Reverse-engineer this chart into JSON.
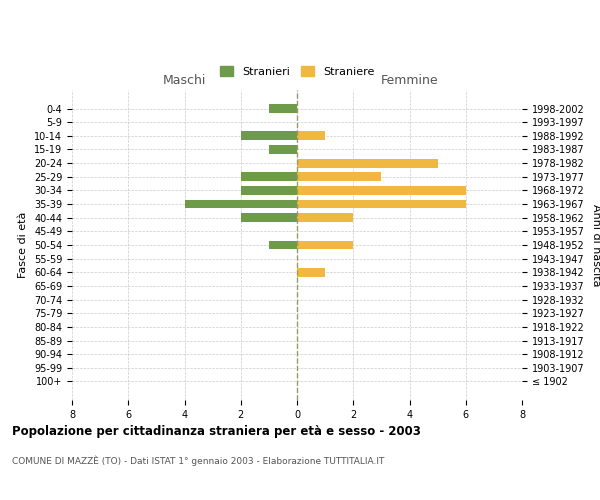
{
  "age_groups": [
    "100+",
    "95-99",
    "90-94",
    "85-89",
    "80-84",
    "75-79",
    "70-74",
    "65-69",
    "60-64",
    "55-59",
    "50-54",
    "45-49",
    "40-44",
    "35-39",
    "30-34",
    "25-29",
    "20-24",
    "15-19",
    "10-14",
    "5-9",
    "0-4"
  ],
  "birth_years": [
    "≤ 1902",
    "1903-1907",
    "1908-1912",
    "1913-1917",
    "1918-1922",
    "1923-1927",
    "1928-1932",
    "1933-1937",
    "1938-1942",
    "1943-1947",
    "1948-1952",
    "1953-1957",
    "1958-1962",
    "1963-1967",
    "1968-1972",
    "1973-1977",
    "1978-1982",
    "1983-1987",
    "1988-1992",
    "1993-1997",
    "1998-2002"
  ],
  "maschi": [
    0,
    0,
    0,
    0,
    0,
    0,
    0,
    0,
    0,
    0,
    1,
    0,
    2,
    4,
    2,
    2,
    0,
    1,
    2,
    0,
    1
  ],
  "femmine": [
    0,
    0,
    0,
    0,
    0,
    0,
    0,
    0,
    1,
    0,
    2,
    0,
    2,
    6,
    6,
    3,
    5,
    0,
    1,
    0,
    0
  ],
  "color_maschi": "#6e9b4a",
  "color_femmine": "#f0b840",
  "title": "Popolazione per cittadinanza straniera per età e sesso - 2003",
  "subtitle": "COMUNE DI MAZZÈ (TO) - Dati ISTAT 1° gennaio 2003 - Elaborazione TUTTITALIA.IT",
  "label_maschi": "Maschi",
  "label_femmine": "Femmine",
  "ylabel_left": "Fasce di età",
  "ylabel_right": "Anni di nascita",
  "legend_maschi": "Stranieri",
  "legend_femmine": "Straniere",
  "xlim": 8,
  "background_color": "#ffffff",
  "grid_color": "#cccccc",
  "dashed_line_color": "#999966"
}
